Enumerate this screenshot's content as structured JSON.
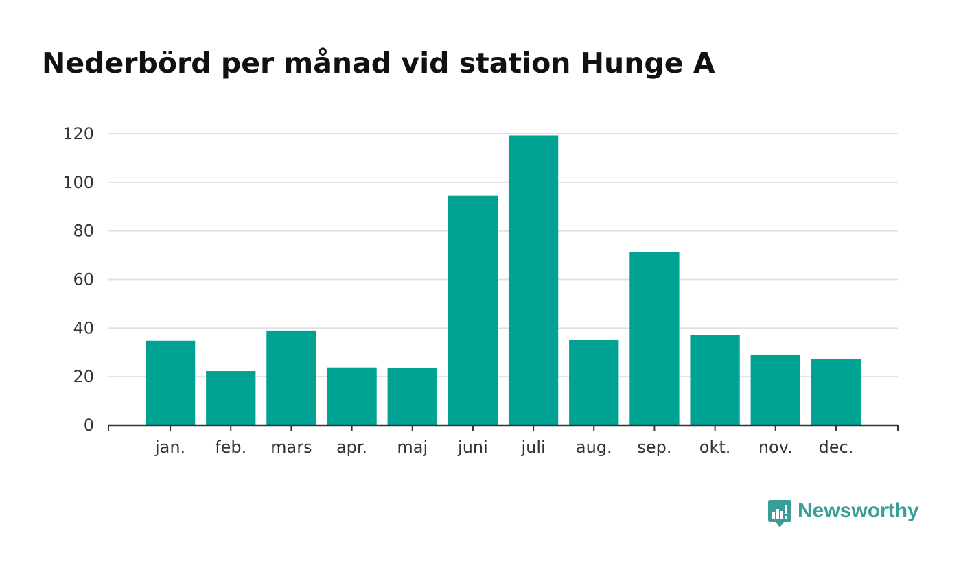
{
  "title": "Nederbörd per månad vid station Hunge A",
  "brand": {
    "name": "Newsworthy",
    "color": "#3a9e98",
    "icon": "newsworthy-logo-icon"
  },
  "colors": {
    "bar": "#00a294",
    "grid": "#e0e0e0",
    "axis": "#333333",
    "title": "#111111",
    "tick_text": "#333333"
  },
  "chart_data": {
    "type": "bar",
    "title": "Nederbörd per månad vid station Hunge A",
    "xlabel": "",
    "ylabel": "",
    "categories": [
      "jan.",
      "feb.",
      "mars",
      "apr.",
      "maj",
      "juni",
      "juli",
      "aug.",
      "sep.",
      "okt.",
      "nov.",
      "dec."
    ],
    "values": [
      34.8,
      22.3,
      39.0,
      23.8,
      23.6,
      94.4,
      119.3,
      35.2,
      71.2,
      37.2,
      29.1,
      27.3
    ],
    "ylim": [
      0,
      120
    ],
    "yticks": [
      0,
      20,
      40,
      60,
      80,
      100,
      120
    ],
    "grid": true,
    "legend": "none"
  }
}
